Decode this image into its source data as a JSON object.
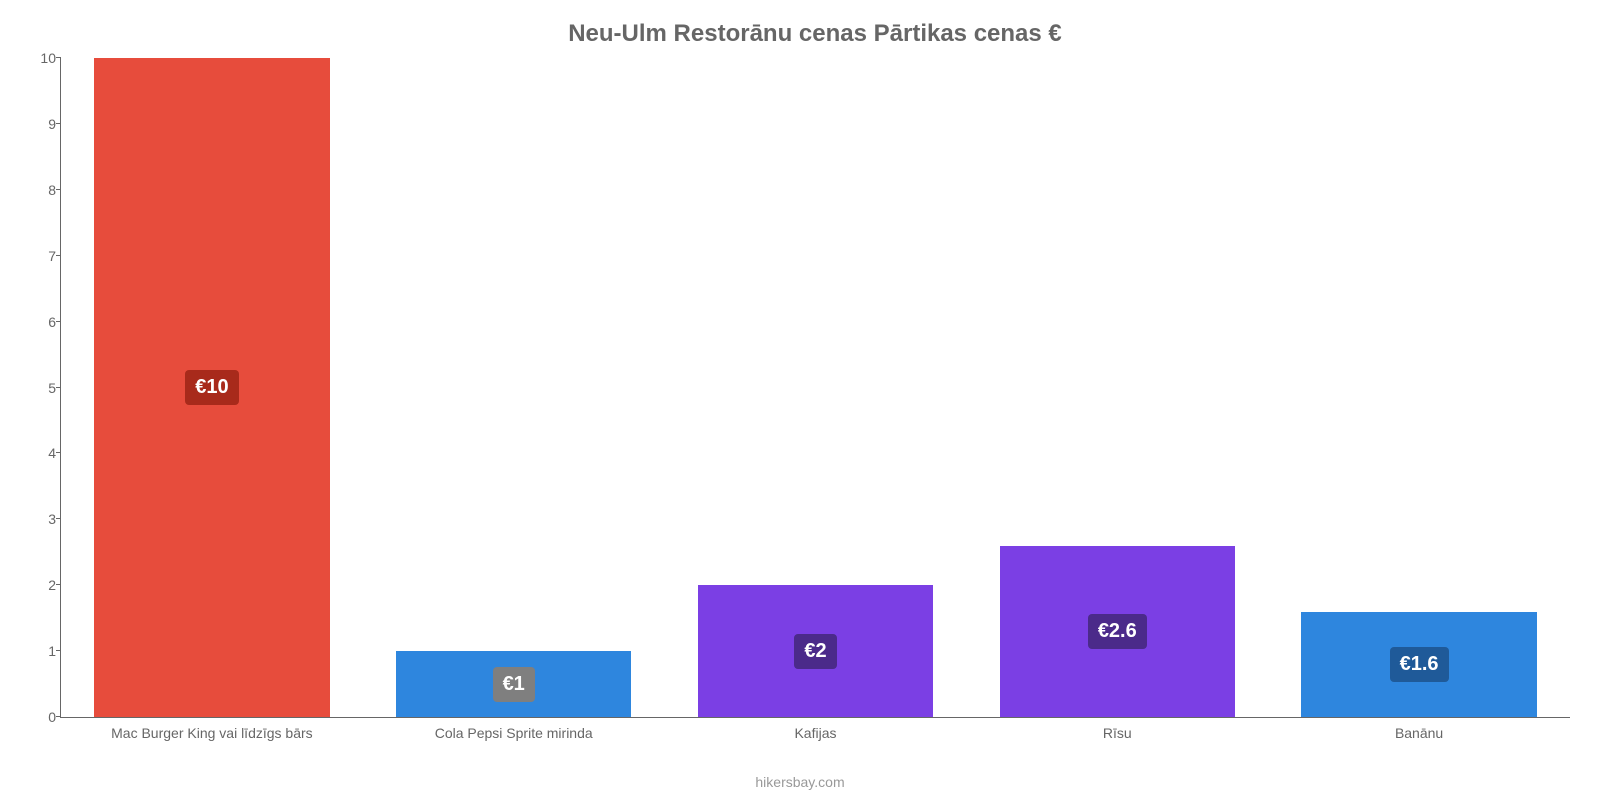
{
  "chart": {
    "type": "bar",
    "title": "Neu-Ulm Restorānu cenas Pārtikas cenas €",
    "title_color": "#666666",
    "title_fontsize": 24,
    "background_color": "#ffffff",
    "axis_color": "#666666",
    "tick_label_color": "#666666",
    "tick_fontsize": 14,
    "x_label_fontsize": 14,
    "ylim_min": 0,
    "ylim_max": 10,
    "ytick_step": 1,
    "bar_width_ratio": 0.78,
    "credit": "hikersbay.com",
    "credit_color": "#999999",
    "yticks": [
      {
        "value": 0,
        "label": "0"
      },
      {
        "value": 1,
        "label": "1"
      },
      {
        "value": 2,
        "label": "2"
      },
      {
        "value": 3,
        "label": "3"
      },
      {
        "value": 4,
        "label": "4"
      },
      {
        "value": 5,
        "label": "5"
      },
      {
        "value": 6,
        "label": "6"
      },
      {
        "value": 7,
        "label": "7"
      },
      {
        "value": 8,
        "label": "8"
      },
      {
        "value": 9,
        "label": "9"
      },
      {
        "value": 10,
        "label": "10"
      }
    ],
    "bars": [
      {
        "category": "Mac Burger King vai līdzīgs bārs",
        "value": 10,
        "display_label": "€10",
        "bar_color": "#e74c3c",
        "label_bg_color": "#a82a1b",
        "label_text_color": "#ffffff"
      },
      {
        "category": "Cola Pepsi Sprite mirinda",
        "value": 1,
        "display_label": "€1",
        "bar_color": "#2e86de",
        "label_bg_color": "#7f7f7f",
        "label_text_color": "#ffffff"
      },
      {
        "category": "Kafijas",
        "value": 2,
        "display_label": "€2",
        "bar_color": "#7b3fe4",
        "label_bg_color": "#4b2a8a",
        "label_text_color": "#ffffff"
      },
      {
        "category": "Rīsu",
        "value": 2.6,
        "display_label": "€2.6",
        "bar_color": "#7b3fe4",
        "label_bg_color": "#4b2a8a",
        "label_text_color": "#ffffff"
      },
      {
        "category": "Banānu",
        "value": 1.6,
        "display_label": "€1.6",
        "bar_color": "#2e86de",
        "label_bg_color": "#1f5a99",
        "label_text_color": "#ffffff"
      }
    ]
  }
}
